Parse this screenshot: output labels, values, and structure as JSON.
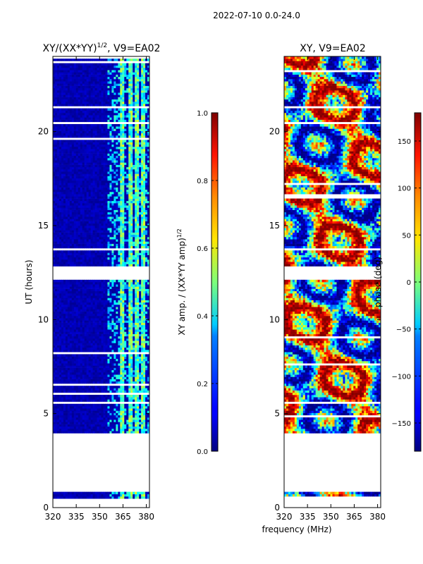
{
  "suptitle": "2022-07-10 0.0-24.0",
  "shared_xlabel": "frequency (MHz)",
  "chart_data": [
    {
      "type": "heatmap",
      "title": "XY/(XX*YY)^{1/2}, V9=EA02",
      "title_main": "XY/(XX*YY)",
      "title_sup": "1/2",
      "title_tail": ", V9=EA02",
      "ylabel": "UT (hours)",
      "xlim": [
        320,
        382
      ],
      "ylim": [
        0,
        24
      ],
      "xticks": [
        320,
        335,
        350,
        365,
        380
      ],
      "yticks": [
        0,
        5,
        10,
        15,
        20
      ],
      "colorbar": {
        "label_main": "XY amp. / (XX*YY amp)",
        "label_sup": "1/2",
        "range": [
          0.0,
          1.0
        ],
        "ticks": [
          "0.0",
          "0.2",
          "0.4",
          "0.6",
          "0.8",
          "1.0"
        ],
        "tick_values": [
          0.0,
          0.2,
          0.4,
          0.6,
          0.8,
          1.0
        ]
      },
      "data_bands_ut": [
        [
          0.5,
          0.8
        ],
        [
          4.0,
          5.5
        ],
        [
          5.6,
          12.1
        ],
        [
          12.8,
          20.4
        ],
        [
          20.5,
          24.0
        ]
      ],
      "bright_freq_ranges_mhz": [
        [
          363,
          366
        ],
        [
          368,
          371
        ],
        [
          373,
          375
        ],
        [
          377,
          379
        ],
        [
          380,
          381
        ]
      ],
      "background_level": 0.05,
      "bright_level": 0.45
    },
    {
      "type": "heatmap",
      "title": "XY, V9=EA02",
      "xlim": [
        320,
        382
      ],
      "ylim": [
        0,
        24
      ],
      "xticks": [
        320,
        335,
        350,
        365,
        380
      ],
      "yticks": [
        0,
        5,
        10,
        15,
        20
      ],
      "colorbar": {
        "label": "phase (deg)",
        "range": [
          -180,
          180
        ],
        "ticks": [
          "−150",
          "−100",
          "−50",
          "0",
          "50",
          "100",
          "150"
        ],
        "tick_values": [
          -150,
          -100,
          -50,
          0,
          50,
          100,
          150
        ]
      },
      "data_bands_ut": [
        [
          0.5,
          0.8
        ],
        [
          4.0,
          5.5
        ],
        [
          5.6,
          12.1
        ],
        [
          12.8,
          20.4
        ],
        [
          20.5,
          24.0
        ]
      ]
    }
  ]
}
